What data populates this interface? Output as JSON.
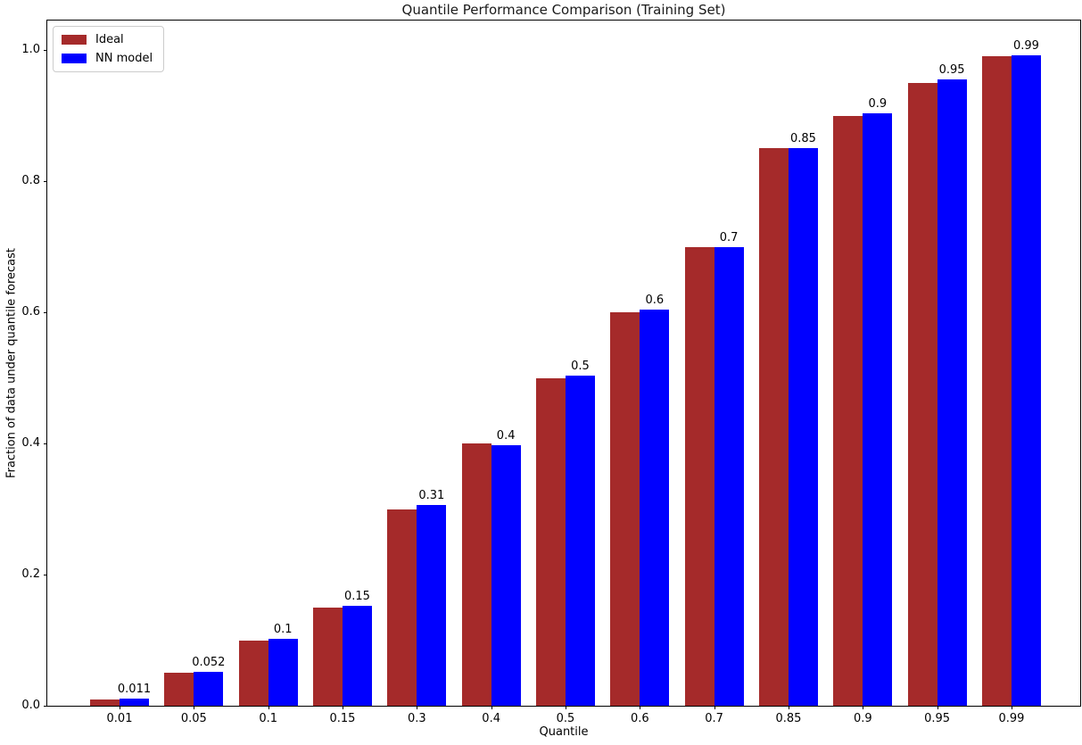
{
  "chart_data": {
    "type": "bar",
    "title": "Quantile Performance Comparison (Training Set)",
    "xlabel": "Quantile",
    "ylabel": "Fraction of data under quantile forecast",
    "categories": [
      "0.01",
      "0.05",
      "0.1",
      "0.15",
      "0.3",
      "0.4",
      "0.5",
      "0.6",
      "0.7",
      "0.85",
      "0.9",
      "0.95",
      "0.99"
    ],
    "series": [
      {
        "name": "Ideal",
        "color": "#A52A2A",
        "values": [
          0.01,
          0.05,
          0.1,
          0.15,
          0.3,
          0.4,
          0.5,
          0.6,
          0.7,
          0.85,
          0.9,
          0.95,
          0.99
        ]
      },
      {
        "name": "NN model",
        "color": "#0000FF",
        "values": [
          0.011,
          0.052,
          0.102,
          0.152,
          0.306,
          0.398,
          0.503,
          0.604,
          0.7,
          0.851,
          0.903,
          0.955,
          0.992
        ],
        "bar_labels": [
          "0.011",
          "0.052",
          "0.1",
          "0.15",
          "0.31",
          "0.4",
          "0.5",
          "0.6",
          "0.7",
          "0.85",
          "0.9",
          "0.95",
          "0.99"
        ]
      }
    ],
    "yticks": [
      "0.0",
      "0.2",
      "0.4",
      "0.6",
      "0.8",
      "1.0"
    ],
    "ylim": [
      0,
      1.045
    ],
    "grid": false,
    "legend_position": "upper-left",
    "bar_label_color": "#000000",
    "axis_color": "#000000"
  }
}
